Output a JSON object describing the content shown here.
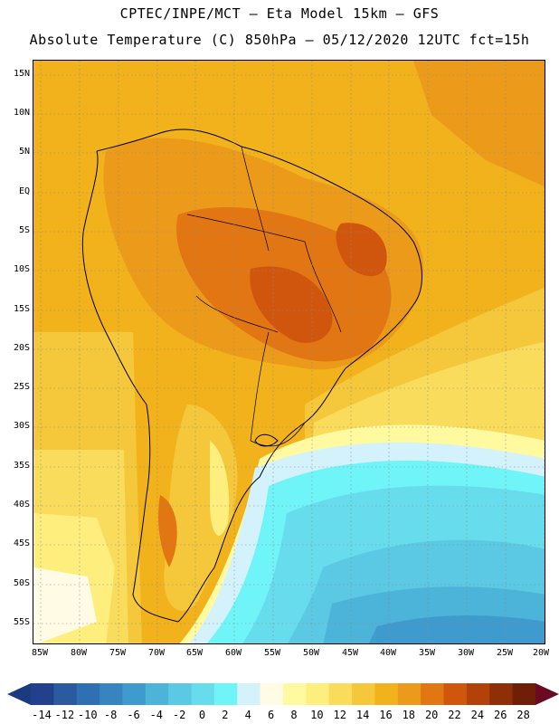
{
  "header": {
    "line1": "CPTEC/INPE/MCT –  Eta Model 15km – GFS",
    "line2": "Absolute Temperature (C) 850hPa – 05/12/2020 12UTC fct=15h"
  },
  "map": {
    "lat_labels": [
      "15N",
      "10N",
      "5N",
      "EQ",
      "5S",
      "10S",
      "15S",
      "20S",
      "25S",
      "30S",
      "35S",
      "40S",
      "45S",
      "50S",
      "55S"
    ],
    "lon_labels": [
      "85W",
      "80W",
      "75W",
      "70W",
      "65W",
      "60W",
      "55W",
      "50W",
      "45W",
      "40W",
      "35W",
      "30W",
      "25W",
      "20W"
    ]
  },
  "colorbar": {
    "ticks": [
      "-14",
      "-12",
      "-10",
      "-8",
      "-6",
      "-4",
      "-2",
      "0",
      "2",
      "4",
      "6",
      "8",
      "10",
      "12",
      "14",
      "16",
      "18",
      "20",
      "22",
      "24",
      "26",
      "28"
    ],
    "colors": [
      "#23408e",
      "#2a5aa0",
      "#2f6fb3",
      "#3784c1",
      "#3f9bcd",
      "#4cb3d9",
      "#5bc9e3",
      "#66dcec",
      "#6ff5f7",
      "#d4f2fb",
      "#fffbe5",
      "#fff9a0",
      "#fdee7d",
      "#f9dc5c",
      "#f5c73a",
      "#f1b21b",
      "#ec9a1a",
      "#e27612",
      "#d0560d",
      "#b2410a",
      "#8e2f08",
      "#6e1f06"
    ],
    "low_arrow_color": "#1c3a80",
    "high_arrow_color": "#6a0a24"
  },
  "icons": {
    "low_end": "triangle-left-icon",
    "high_end": "triangle-right-icon"
  }
}
